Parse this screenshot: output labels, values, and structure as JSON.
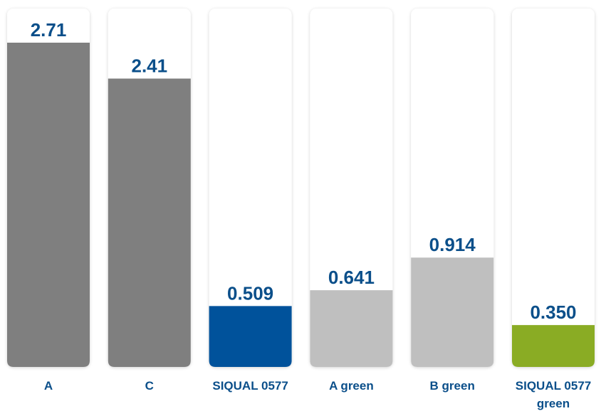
{
  "chart_data": {
    "type": "bar",
    "title": "",
    "xlabel": "",
    "ylabel": "",
    "ylim": [
      0,
      2.71
    ],
    "grid": false,
    "legend": "none",
    "categories": [
      [
        "A"
      ],
      [
        "C"
      ],
      [
        "SIQUAL 0577"
      ],
      [
        "A green"
      ],
      [
        "B green"
      ],
      [
        "SIQUAL 0577",
        "green"
      ]
    ],
    "values": [
      2.71,
      2.41,
      0.509,
      0.641,
      0.914,
      0.35
    ],
    "value_labels": [
      "2.71",
      "2.41",
      "0.509",
      "0.641",
      "0.914",
      "0.350"
    ],
    "bar_colors": [
      "#7f7f7f",
      "#7f7f7f",
      "#00529b",
      "#bfbfbf",
      "#bfbfbf",
      "#8aac24"
    ],
    "track_color": "#ffffff",
    "label_color": "#0b4f8a"
  }
}
